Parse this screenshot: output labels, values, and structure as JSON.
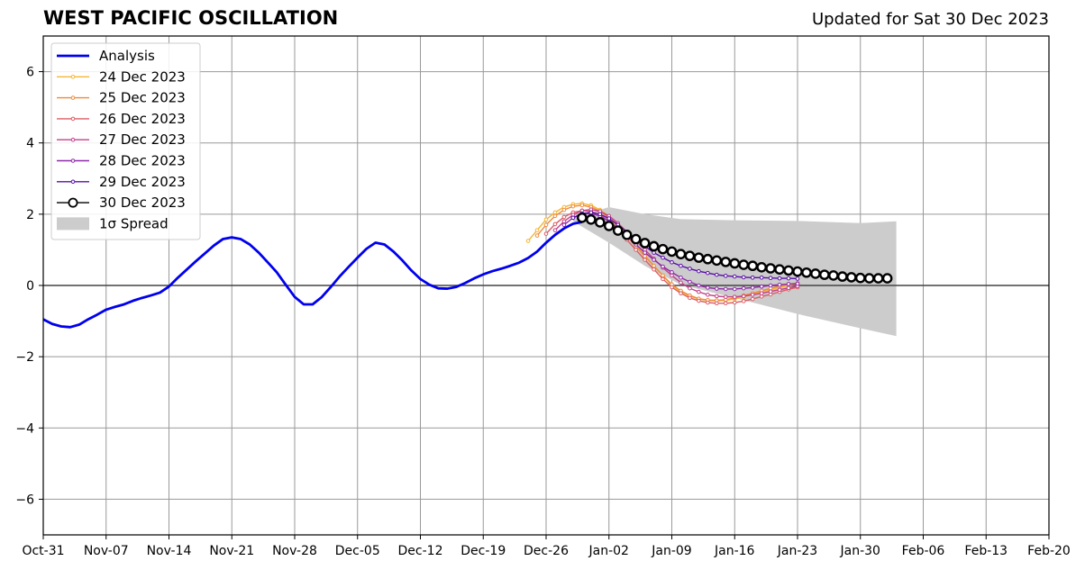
{
  "header": {
    "title": "WEST PACIFIC OSCILLATION",
    "updated": "Updated for Sat 30 Dec 2023"
  },
  "chart_data": {
    "type": "line",
    "title": "WEST PACIFIC OSCILLATION",
    "subtitle": "Updated for Sat 30 Dec 2023",
    "xlabel": "",
    "ylabel": "",
    "x_start": "2023-10-31",
    "xlim": [
      "2023-10-31",
      "2024-02-20"
    ],
    "ylim": [
      -7,
      7
    ],
    "x_ticks": [
      {
        "date": "2023-10-31",
        "label": "Oct-31"
      },
      {
        "date": "2023-11-07",
        "label": "Nov-07"
      },
      {
        "date": "2023-11-14",
        "label": "Nov-14"
      },
      {
        "date": "2023-11-21",
        "label": "Nov-21"
      },
      {
        "date": "2023-11-28",
        "label": "Nov-28"
      },
      {
        "date": "2023-12-05",
        "label": "Dec-05"
      },
      {
        "date": "2023-12-12",
        "label": "Dec-12"
      },
      {
        "date": "2023-12-19",
        "label": "Dec-19"
      },
      {
        "date": "2023-12-26",
        "label": "Dec-26"
      },
      {
        "date": "2024-01-02",
        "label": "Jan-02"
      },
      {
        "date": "2024-01-09",
        "label": "Jan-09"
      },
      {
        "date": "2024-01-16",
        "label": "Jan-16"
      },
      {
        "date": "2024-01-23",
        "label": "Jan-23"
      },
      {
        "date": "2024-01-30",
        "label": "Jan-30"
      },
      {
        "date": "2024-02-06",
        "label": "Feb-06"
      },
      {
        "date": "2024-02-13",
        "label": "Feb-13"
      },
      {
        "date": "2024-02-20",
        "label": "Feb-20"
      }
    ],
    "y_ticks": [
      {
        "value": 6,
        "label": "6"
      },
      {
        "value": 4,
        "label": "4"
      },
      {
        "value": 2,
        "label": "2"
      },
      {
        "value": 0,
        "label": "0"
      },
      {
        "value": -2,
        "label": "−2"
      },
      {
        "value": -4,
        "label": "−4"
      },
      {
        "value": -6,
        "label": "−6"
      }
    ],
    "grid": true,
    "legend_position": "top-left",
    "analysis": {
      "name": "Analysis",
      "color": "#0000ee",
      "x": [
        "2023-10-31",
        "2023-11-01",
        "2023-11-02",
        "2023-11-03",
        "2023-11-04",
        "2023-11-05",
        "2023-11-06",
        "2023-11-07",
        "2023-11-08",
        "2023-11-09",
        "2023-11-10",
        "2023-11-11",
        "2023-11-12",
        "2023-11-13",
        "2023-11-14",
        "2023-11-15",
        "2023-11-16",
        "2023-11-17",
        "2023-11-18",
        "2023-11-19",
        "2023-11-20",
        "2023-11-21",
        "2023-11-22",
        "2023-11-23",
        "2023-11-24",
        "2023-11-25",
        "2023-11-26",
        "2023-11-27",
        "2023-11-28",
        "2023-11-29",
        "2023-11-30",
        "2023-12-01",
        "2023-12-02",
        "2023-12-03",
        "2023-12-04",
        "2023-12-05",
        "2023-12-06",
        "2023-12-07",
        "2023-12-08",
        "2023-12-09",
        "2023-12-10",
        "2023-12-11",
        "2023-12-12",
        "2023-12-13",
        "2023-12-14",
        "2023-12-15",
        "2023-12-16",
        "2023-12-17",
        "2023-12-18",
        "2023-12-19",
        "2023-12-20",
        "2023-12-21",
        "2023-12-22",
        "2023-12-23",
        "2023-12-24",
        "2023-12-25",
        "2023-12-26",
        "2023-12-27",
        "2023-12-28",
        "2023-12-29",
        "2023-12-30"
      ],
      "y": [
        -0.95,
        -1.08,
        -1.15,
        -1.17,
        -1.1,
        -0.95,
        -0.82,
        -0.68,
        -0.6,
        -0.53,
        -0.43,
        -0.35,
        -0.28,
        -0.2,
        -0.03,
        0.22,
        0.45,
        0.68,
        0.9,
        1.12,
        1.3,
        1.35,
        1.3,
        1.15,
        0.92,
        0.65,
        0.37,
        0.02,
        -0.32,
        -0.53,
        -0.53,
        -0.33,
        -0.05,
        0.25,
        0.52,
        0.78,
        1.03,
        1.2,
        1.15,
        0.95,
        0.7,
        0.42,
        0.18,
        0.02,
        -0.08,
        -0.09,
        -0.04,
        0.07,
        0.2,
        0.31,
        0.4,
        0.47,
        0.55,
        0.64,
        0.77,
        0.95,
        1.2,
        1.42,
        1.6,
        1.73,
        1.78
      ]
    },
    "forecasts": [
      {
        "name": "24 Dec 2023",
        "color": "#f5b533",
        "start": "2023-12-24",
        "y": [
          1.25,
          1.55,
          1.85,
          2.05,
          2.2,
          2.28,
          2.3,
          2.25,
          2.12,
          1.95,
          1.72,
          1.45,
          1.15,
          0.85,
          0.55,
          0.27,
          0.0,
          -0.18,
          -0.3,
          -0.38,
          -0.42,
          -0.43,
          -0.42,
          -0.38,
          -0.32,
          -0.25,
          -0.18,
          -0.12,
          -0.05,
          0.0,
          0.05
        ]
      },
      {
        "name": "25 Dec 2023",
        "color": "#ee8a3c",
        "start": "2023-12-25",
        "y": [
          1.4,
          1.7,
          1.95,
          2.12,
          2.22,
          2.25,
          2.2,
          2.08,
          1.9,
          1.65,
          1.38,
          1.1,
          0.82,
          0.55,
          0.28,
          0.03,
          -0.15,
          -0.28,
          -0.37,
          -0.41,
          -0.42,
          -0.4,
          -0.35,
          -0.28,
          -0.22,
          -0.15,
          -0.08,
          -0.02,
          0.03,
          0.07
        ]
      },
      {
        "name": "26 Dec 2023",
        "color": "#dc5d64",
        "start": "2023-12-26",
        "y": [
          1.45,
          1.72,
          1.92,
          2.05,
          2.1,
          2.08,
          1.98,
          1.8,
          1.55,
          1.28,
          1.0,
          0.72,
          0.45,
          0.18,
          -0.05,
          -0.22,
          -0.35,
          -0.43,
          -0.48,
          -0.5,
          -0.5,
          -0.48,
          -0.44,
          -0.38,
          -0.31,
          -0.25,
          -0.18,
          -0.11,
          -0.05
        ]
      },
      {
        "name": "27 Dec 2023",
        "color": "#c2408a",
        "start": "2023-12-27",
        "y": [
          1.55,
          1.8,
          1.98,
          2.1,
          2.13,
          2.08,
          1.95,
          1.75,
          1.5,
          1.25,
          1.0,
          0.75,
          0.5,
          0.28,
          0.08,
          -0.08,
          -0.18,
          -0.26,
          -0.3,
          -0.32,
          -0.32,
          -0.3,
          -0.26,
          -0.22,
          -0.17,
          -0.12,
          -0.07,
          -0.02
        ]
      },
      {
        "name": "28 Dec 2023",
        "color": "#8e2aa8",
        "start": "2023-12-28",
        "y": [
          1.7,
          1.9,
          2.0,
          2.02,
          1.95,
          1.8,
          1.6,
          1.38,
          1.15,
          0.92,
          0.72,
          0.53,
          0.37,
          0.22,
          0.1,
          0.0,
          -0.06,
          -0.09,
          -0.1,
          -0.1,
          -0.08,
          -0.06,
          -0.03,
          0.0,
          0.02,
          0.04,
          0.05
        ]
      },
      {
        "name": "29 Dec 2023",
        "color": "#5a0fa8",
        "start": "2023-12-29",
        "y": [
          1.9,
          2.02,
          2.05,
          2.0,
          1.88,
          1.7,
          1.5,
          1.3,
          1.1,
          0.92,
          0.78,
          0.65,
          0.55,
          0.47,
          0.4,
          0.35,
          0.3,
          0.27,
          0.25,
          0.23,
          0.22,
          0.22,
          0.21,
          0.2,
          0.2,
          0.19
        ]
      },
      {
        "name": "30 Dec 2023",
        "color": "#000000",
        "start": "2023-12-30",
        "y": [
          1.9,
          1.85,
          1.77,
          1.67,
          1.54,
          1.42,
          1.3,
          1.19,
          1.1,
          1.02,
          0.95,
          0.88,
          0.83,
          0.78,
          0.74,
          0.7,
          0.66,
          0.62,
          0.58,
          0.55,
          0.51,
          0.48,
          0.45,
          0.42,
          0.39,
          0.36,
          0.33,
          0.3,
          0.28,
          0.25,
          0.23,
          0.21,
          0.2,
          0.2,
          0.2
        ]
      }
    ],
    "spread": {
      "name": "1σ Spread",
      "color": "#cccccc",
      "start": "2023-12-29",
      "x": [
        "2023-12-29",
        "2024-01-02",
        "2024-01-06",
        "2024-01-10",
        "2024-01-16",
        "2024-01-23",
        "2024-01-30",
        "2024-02-03"
      ],
      "upper": [
        1.9,
        2.2,
        2.0,
        1.86,
        1.83,
        1.81,
        1.75,
        1.8
      ],
      "lower": [
        1.8,
        1.2,
        0.55,
        0.02,
        -0.35,
        -0.8,
        -1.2,
        -1.42
      ]
    }
  }
}
